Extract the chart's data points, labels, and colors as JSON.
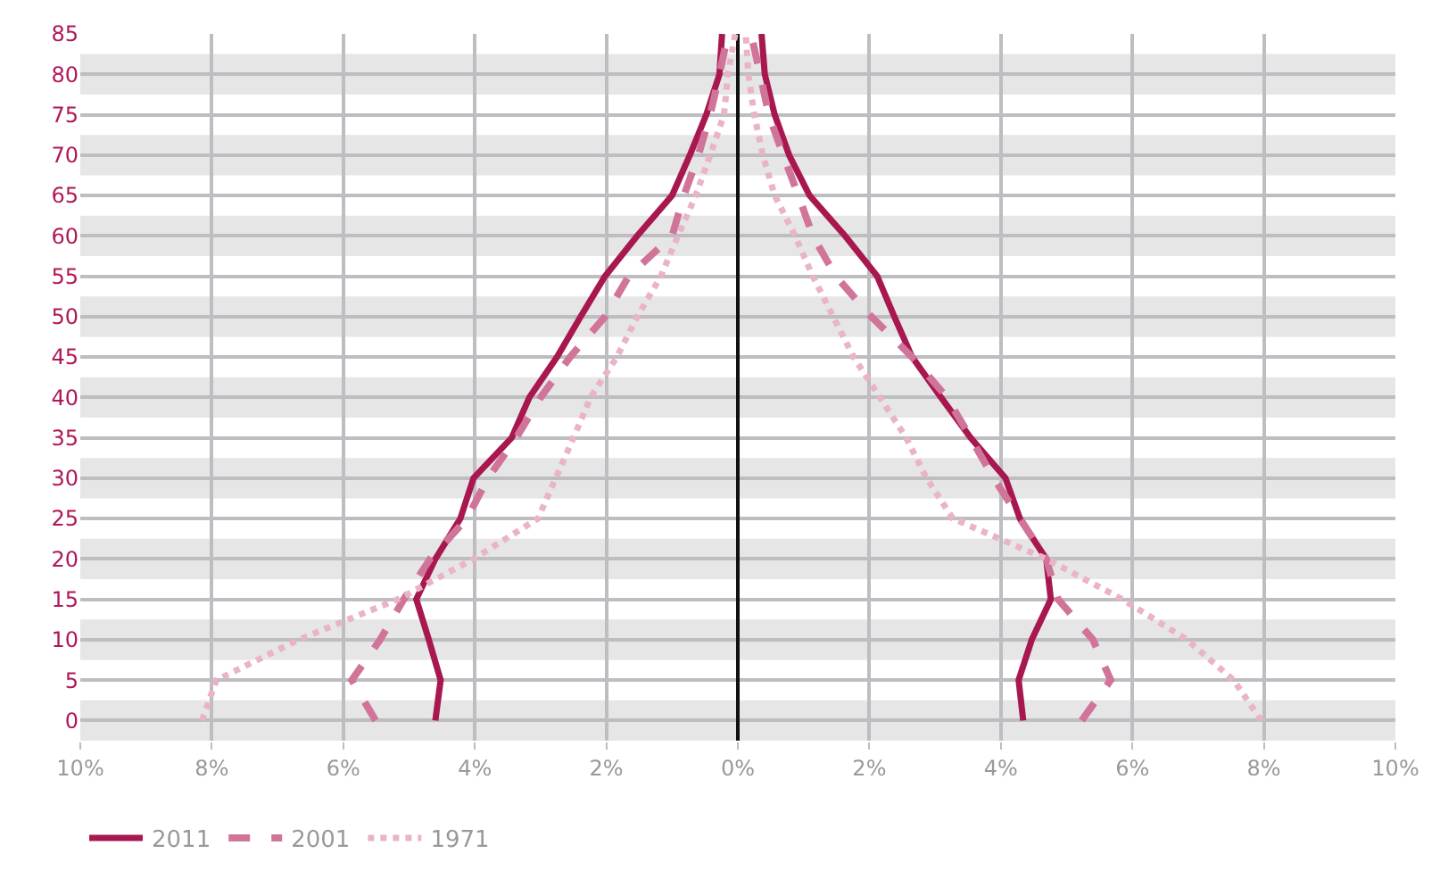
{
  "chart_data": {
    "type": "line",
    "x": [
      0,
      5,
      10,
      15,
      20,
      25,
      30,
      35,
      40,
      45,
      50,
      55,
      60,
      65,
      70,
      75,
      80,
      85
    ],
    "series": [
      {
        "name": "2011",
        "color": "#a8174f",
        "line_style": "solid",
        "values": [
          -4.6,
          -4.52,
          -4.7,
          -4.89,
          -4.6,
          -4.22,
          -4.02,
          -3.44,
          -3.17,
          -2.75,
          -2.39,
          -2.02,
          -1.53,
          -1.0,
          -0.73,
          -0.48,
          -0.28,
          -0.24
        ]
      },
      {
        "color": "#a8174f",
        "line_style": "solid",
        "values": [
          4.34,
          4.27,
          4.47,
          4.76,
          4.69,
          4.29,
          4.07,
          3.54,
          3.09,
          2.65,
          2.38,
          2.12,
          1.63,
          1.09,
          0.78,
          0.56,
          0.41,
          0.36
        ]
      },
      {
        "name": "2001",
        "color": "#d0749a",
        "line_style": "dashed",
        "values": [
          -5.51,
          -5.87,
          -5.44,
          -5.08,
          -4.68,
          -4.12,
          -3.8,
          -3.37,
          -3.0,
          -2.55,
          -2.02,
          -1.66,
          -1.0,
          -0.82,
          -0.6,
          -0.42,
          -0.28,
          -0.15
        ]
      },
      {
        "color": "#d0749a",
        "line_style": "dashed",
        "values": [
          5.23,
          5.67,
          5.4,
          4.87,
          4.69,
          4.29,
          3.89,
          3.54,
          3.18,
          2.65,
          2.03,
          1.49,
          1.14,
          0.92,
          0.69,
          0.47,
          0.34,
          0.2
        ]
      },
      {
        "name": "1971",
        "color": "#eab4c8",
        "line_style": "dotted",
        "values": [
          -8.15,
          -7.93,
          -6.68,
          -5.17,
          -4.02,
          -3.04,
          -2.77,
          -2.5,
          -2.24,
          -1.84,
          -1.53,
          -1.17,
          -0.91,
          -0.64,
          -0.42,
          -0.21,
          -0.15,
          -0.04
        ]
      },
      {
        "color": "#eab4c8",
        "line_style": "dotted",
        "values": [
          7.96,
          7.54,
          6.83,
          5.85,
          4.69,
          3.27,
          2.87,
          2.56,
          2.16,
          1.76,
          1.45,
          1.14,
          0.87,
          0.56,
          0.38,
          0.25,
          0.16,
          0.12
        ]
      }
    ],
    "orientation": "horizontal",
    "xlim": [
      -10,
      10
    ],
    "xticks": [
      {
        "value": -10,
        "label": "10%"
      },
      {
        "value": -8,
        "label": "8%"
      },
      {
        "value": -6,
        "label": "6%"
      },
      {
        "value": -4,
        "label": "4%"
      },
      {
        "value": -2,
        "label": "2%"
      },
      {
        "value": 0,
        "label": "0%"
      },
      {
        "value": 2,
        "label": "2%"
      },
      {
        "value": 4,
        "label": "4%"
      },
      {
        "value": 6,
        "label": "6%"
      },
      {
        "value": 8,
        "label": "8%"
      },
      {
        "value": 10,
        "label": "10%"
      }
    ],
    "ylim": [
      -2.5,
      85
    ],
    "yticks": [
      0,
      5,
      10,
      15,
      20,
      25,
      30,
      35,
      40,
      45,
      50,
      55,
      60,
      65,
      70,
      75,
      80,
      85
    ],
    "bands": [
      {
        "axis": "y",
        "from": -2.5,
        "to": 2.5,
        "color": "#e6e6e6"
      },
      {
        "axis": "y",
        "from": 7.5,
        "to": 12.5,
        "color": "#e6e6e6"
      },
      {
        "axis": "y",
        "from": 17.5,
        "to": 22.5,
        "color": "#e6e6e6"
      },
      {
        "axis": "y",
        "from": 27.5,
        "to": 32.5,
        "color": "#e6e6e6"
      },
      {
        "axis": "y",
        "from": 37.5,
        "to": 42.5,
        "color": "#e6e6e6"
      },
      {
        "axis": "y",
        "from": 47.5,
        "to": 52.5,
        "color": "#e6e6e6"
      },
      {
        "axis": "y",
        "from": 57.5,
        "to": 62.5,
        "color": "#e6e6e6"
      },
      {
        "axis": "y",
        "from": 67.5,
        "to": 72.5,
        "color": "#e6e6e6"
      },
      {
        "axis": "y",
        "from": 77.5,
        "to": 82.5,
        "color": "#e6e6e6"
      }
    ],
    "grid": true,
    "legend": "bottom left"
  }
}
